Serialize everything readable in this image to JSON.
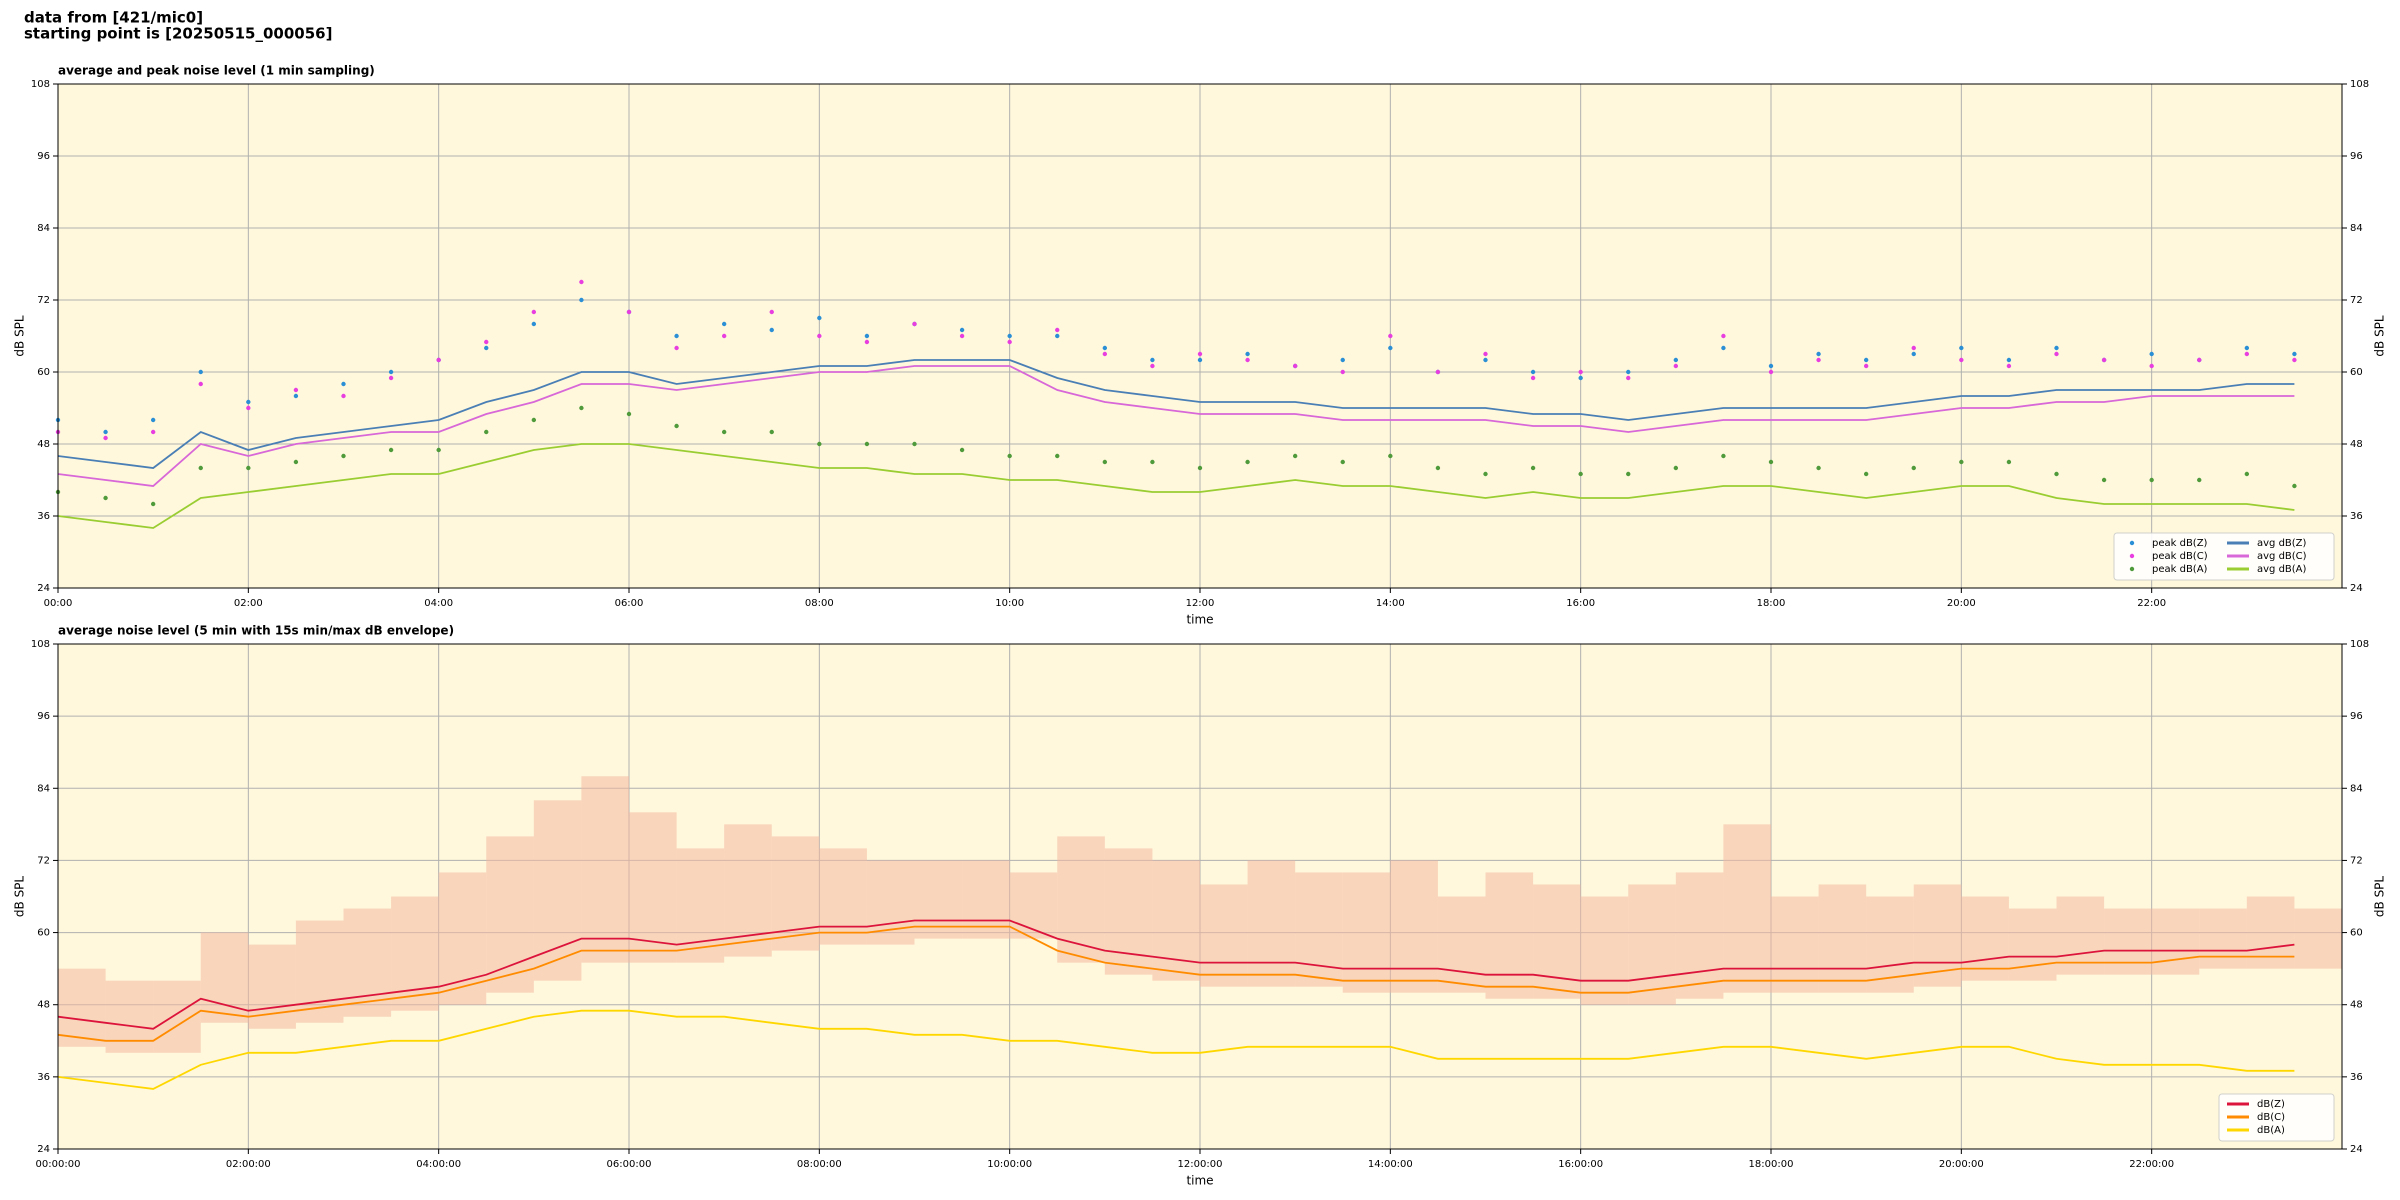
{
  "header": {
    "lines": [
      "data from [421/mic0]",
      "starting point is [20250515_000056]"
    ]
  },
  "chart_data": [
    {
      "type": "line",
      "title": "average and peak noise level (1 min sampling)",
      "xlabel": "time",
      "ylabel": "dB SPL",
      "background": "#fff8dc",
      "grid": true,
      "legend": "lower right",
      "legend_columns": 2,
      "xlim": [
        0,
        24
      ],
      "xticks": [
        {
          "value": 0,
          "label": "00:00"
        },
        {
          "value": 2,
          "label": "02:00"
        },
        {
          "value": 4,
          "label": "04:00"
        },
        {
          "value": 6,
          "label": "06:00"
        },
        {
          "value": 8,
          "label": "08:00"
        },
        {
          "value": 10,
          "label": "10:00"
        },
        {
          "value": 12,
          "label": "12:00"
        },
        {
          "value": 14,
          "label": "14:00"
        },
        {
          "value": 16,
          "label": "16:00"
        },
        {
          "value": 18,
          "label": "18:00"
        },
        {
          "value": 20,
          "label": "20:00"
        },
        {
          "value": 22,
          "label": "22:00"
        }
      ],
      "ylim": [
        24,
        108
      ],
      "yticks": [
        24,
        36,
        48,
        60,
        72,
        84,
        96,
        108
      ],
      "x": [
        0,
        0.5,
        1,
        1.5,
        2,
        2.5,
        3,
        3.5,
        4,
        4.5,
        5,
        5.5,
        6,
        6.5,
        7,
        7.5,
        8,
        8.5,
        9,
        9.5,
        10,
        10.5,
        11,
        11.5,
        12,
        12.5,
        13,
        13.5,
        14,
        14.5,
        15,
        15.5,
        16,
        16.5,
        17,
        17.5,
        18,
        18.5,
        19,
        19.5,
        20,
        20.5,
        21,
        21.5,
        22,
        22.5,
        23,
        23.5
      ],
      "series": [
        {
          "name": "peak dB(Z)",
          "color": "#2b8fd6",
          "style": "dots",
          "values": [
            52,
            50,
            52,
            60,
            55,
            56,
            58,
            60,
            62,
            64,
            68,
            72,
            70,
            66,
            68,
            67,
            69,
            66,
            68,
            67,
            66,
            66,
            64,
            62,
            62,
            63,
            61,
            62,
            64,
            60,
            62,
            60,
            59,
            60,
            62,
            64,
            61,
            63,
            62,
            63,
            64,
            62,
            64,
            62,
            63,
            62,
            64,
            63
          ]
        },
        {
          "name": "peak dB(C)",
          "color": "#e83ee0",
          "style": "dots",
          "values": [
            50,
            49,
            50,
            58,
            54,
            57,
            56,
            59,
            62,
            65,
            70,
            75,
            70,
            64,
            66,
            70,
            66,
            65,
            68,
            66,
            65,
            67,
            63,
            61,
            63,
            62,
            61,
            60,
            66,
            60,
            63,
            59,
            60,
            59,
            61,
            66,
            60,
            62,
            61,
            64,
            62,
            61,
            63,
            62,
            61,
            62,
            63,
            62
          ]
        },
        {
          "name": "peak dB(A)",
          "color": "#4f9a3a",
          "style": "dots",
          "values": [
            40,
            39,
            38,
            44,
            44,
            45,
            46,
            47,
            47,
            50,
            52,
            54,
            53,
            51,
            50,
            50,
            48,
            48,
            48,
            47,
            46,
            46,
            45,
            45,
            44,
            45,
            46,
            45,
            46,
            44,
            43,
            44,
            43,
            43,
            44,
            46,
            45,
            44,
            43,
            44,
            45,
            45,
            43,
            42,
            42,
            42,
            43,
            41
          ]
        },
        {
          "name": "avg dB(Z)",
          "color": "#4a7fb5",
          "style": "line",
          "values": [
            46,
            45,
            44,
            50,
            47,
            49,
            50,
            51,
            52,
            55,
            57,
            60,
            60,
            58,
            59,
            60,
            61,
            61,
            62,
            62,
            62,
            59,
            57,
            56,
            55,
            55,
            55,
            54,
            54,
            54,
            54,
            53,
            53,
            52,
            53,
            54,
            54,
            54,
            54,
            55,
            56,
            56,
            57,
            57,
            57,
            57,
            58,
            58
          ]
        },
        {
          "name": "avg dB(C)",
          "color": "#d867d8",
          "style": "line",
          "values": [
            43,
            42,
            41,
            48,
            46,
            48,
            49,
            50,
            50,
            53,
            55,
            58,
            58,
            57,
            58,
            59,
            60,
            60,
            61,
            61,
            61,
            57,
            55,
            54,
            53,
            53,
            53,
            52,
            52,
            52,
            52,
            51,
            51,
            50,
            51,
            52,
            52,
            52,
            52,
            53,
            54,
            54,
            55,
            55,
            56,
            56,
            56,
            56
          ]
        },
        {
          "name": "avg dB(A)",
          "color": "#9acd32",
          "style": "line",
          "values": [
            36,
            35,
            34,
            39,
            40,
            41,
            42,
            43,
            43,
            45,
            47,
            48,
            48,
            47,
            46,
            45,
            44,
            44,
            43,
            43,
            42,
            42,
            41,
            40,
            40,
            41,
            42,
            41,
            41,
            40,
            39,
            40,
            39,
            39,
            40,
            41,
            41,
            40,
            39,
            40,
            41,
            41,
            39,
            38,
            38,
            38,
            38,
            37
          ]
        }
      ]
    },
    {
      "type": "line",
      "title": "average noise level (5 min with 15s min/max dB envelope)",
      "xlabel": "time",
      "ylabel": "dB SPL",
      "background": "#fff8dc",
      "grid": true,
      "legend": "lower right",
      "legend_columns": 1,
      "xlim": [
        0,
        24
      ],
      "xticks": [
        {
          "value": 0,
          "label": "00:00:00"
        },
        {
          "value": 2,
          "label": "02:00:00"
        },
        {
          "value": 4,
          "label": "04:00:00"
        },
        {
          "value": 6,
          "label": "06:00:00"
        },
        {
          "value": 8,
          "label": "08:00:00"
        },
        {
          "value": 10,
          "label": "10:00:00"
        },
        {
          "value": 12,
          "label": "12:00:00"
        },
        {
          "value": 14,
          "label": "14:00:00"
        },
        {
          "value": 16,
          "label": "16:00:00"
        },
        {
          "value": 18,
          "label": "18:00:00"
        },
        {
          "value": 20,
          "label": "20:00:00"
        },
        {
          "value": 22,
          "label": "22:00:00"
        }
      ],
      "ylim": [
        24,
        108
      ],
      "yticks": [
        24,
        36,
        48,
        60,
        72,
        84,
        96,
        108
      ],
      "x": [
        0,
        0.5,
        1,
        1.5,
        2,
        2.5,
        3,
        3.5,
        4,
        4.5,
        5,
        5.5,
        6,
        6.5,
        7,
        7.5,
        8,
        8.5,
        9,
        9.5,
        10,
        10.5,
        11,
        11.5,
        12,
        12.5,
        13,
        13.5,
        14,
        14.5,
        15,
        15.5,
        16,
        16.5,
        17,
        17.5,
        18,
        18.5,
        19,
        19.5,
        20,
        20.5,
        21,
        21.5,
        22,
        22.5,
        23,
        23.5
      ],
      "envelope": {
        "color": "#f4b8a0",
        "lower": [
          41,
          40,
          40,
          45,
          44,
          45,
          46,
          47,
          48,
          50,
          52,
          55,
          55,
          55,
          56,
          57,
          58,
          58,
          59,
          59,
          59,
          55,
          53,
          52,
          51,
          51,
          51,
          50,
          50,
          50,
          49,
          49,
          48,
          48,
          49,
          50,
          50,
          50,
          50,
          51,
          52,
          52,
          53,
          53,
          53,
          54,
          54,
          54
        ],
        "upper": [
          54,
          52,
          52,
          60,
          58,
          62,
          64,
          66,
          70,
          76,
          82,
          86,
          80,
          74,
          78,
          76,
          74,
          72,
          72,
          72,
          70,
          76,
          74,
          72,
          68,
          72,
          70,
          70,
          72,
          66,
          70,
          68,
          66,
          68,
          70,
          78,
          66,
          68,
          66,
          68,
          66,
          64,
          66,
          64,
          64,
          64,
          66,
          64
        ]
      },
      "series": [
        {
          "name": "dB(Z)",
          "color": "#dc143c",
          "style": "line",
          "values": [
            46,
            45,
            44,
            49,
            47,
            48,
            49,
            50,
            51,
            53,
            56,
            59,
            59,
            58,
            59,
            60,
            61,
            61,
            62,
            62,
            62,
            59,
            57,
            56,
            55,
            55,
            55,
            54,
            54,
            54,
            53,
            53,
            52,
            52,
            53,
            54,
            54,
            54,
            54,
            55,
            55,
            56,
            56,
            57,
            57,
            57,
            57,
            58
          ]
        },
        {
          "name": "dB(C)",
          "color": "#ff8c00",
          "style": "line",
          "values": [
            43,
            42,
            42,
            47,
            46,
            47,
            48,
            49,
            50,
            52,
            54,
            57,
            57,
            57,
            58,
            59,
            60,
            60,
            61,
            61,
            61,
            57,
            55,
            54,
            53,
            53,
            53,
            52,
            52,
            52,
            51,
            51,
            50,
            50,
            51,
            52,
            52,
            52,
            52,
            53,
            54,
            54,
            55,
            55,
            55,
            56,
            56,
            56
          ]
        },
        {
          "name": "dB(A)",
          "color": "#ffd700",
          "style": "line",
          "values": [
            36,
            35,
            34,
            38,
            40,
            40,
            41,
            42,
            42,
            44,
            46,
            47,
            47,
            46,
            46,
            45,
            44,
            44,
            43,
            43,
            42,
            42,
            41,
            40,
            40,
            41,
            41,
            41,
            41,
            39,
            39,
            39,
            39,
            39,
            40,
            41,
            41,
            40,
            39,
            40,
            41,
            41,
            39,
            38,
            38,
            38,
            37,
            37
          ]
        }
      ]
    }
  ]
}
